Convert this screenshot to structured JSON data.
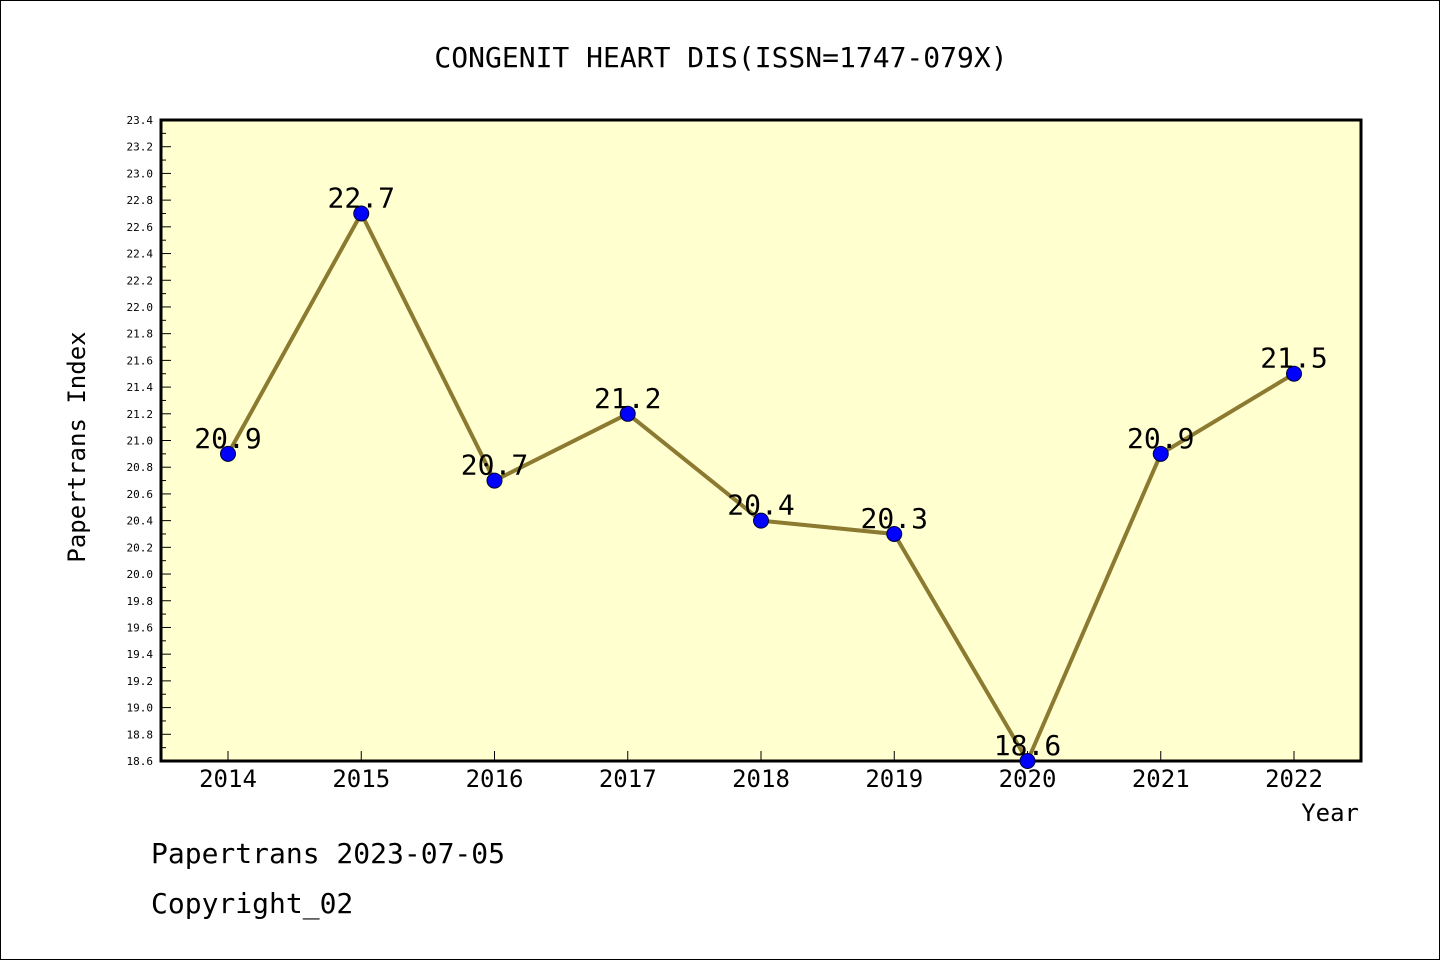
{
  "chart_data": {
    "type": "line",
    "title": "CONGENIT HEART DIS(ISSN=1747-079X)",
    "xlabel": "Year",
    "ylabel": "Papertrans Index",
    "categories": [
      "2014",
      "2015",
      "2016",
      "2017",
      "2018",
      "2019",
      "2020",
      "2021",
      "2022"
    ],
    "series": [
      {
        "values": [
          20.9,
          22.7,
          20.7,
          21.2,
          20.4,
          20.3,
          18.6,
          20.9,
          21.5
        ]
      }
    ],
    "data_labels": [
      "20.9",
      "22.7",
      "20.7",
      "21.2",
      "20.4",
      "20.3",
      "18.6",
      "20.9",
      "21.5"
    ],
    "ylim": [
      18.6,
      23.4
    ],
    "ytick_step": 0.2,
    "grid": false,
    "colors": {
      "line": "#8B7A30",
      "marker": "#0000FF",
      "plot_bg": "#FFFFD0"
    }
  },
  "footer": {
    "line1": "Papertrans 2023-07-05",
    "line2": "Copyright_02"
  }
}
